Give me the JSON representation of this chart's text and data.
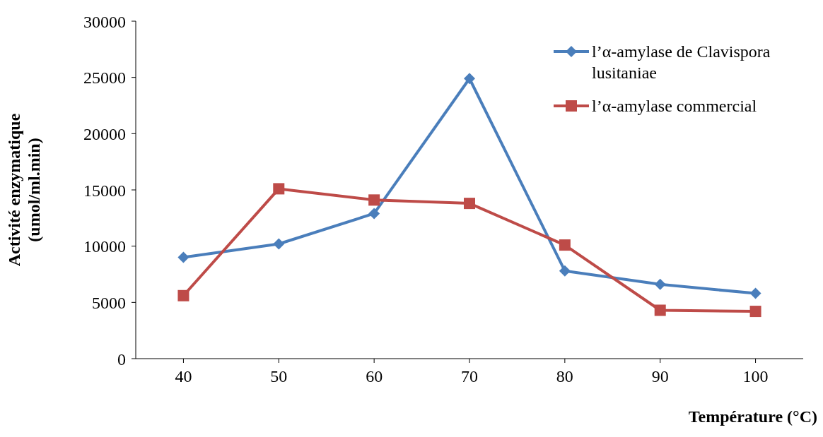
{
  "chart_data": {
    "type": "line",
    "xlabel": "Température (°C)",
    "ylabel": "Activité enzymatique (umol/ml.min)",
    "categories": [
      "40",
      "50",
      "60",
      "70",
      "80",
      "90",
      "100"
    ],
    "series": [
      {
        "name": "l’α-amylase  de Clavispora lusitaniae",
        "color": "#4a7ebb",
        "marker": "diamond",
        "values": [
          9000,
          10200,
          12900,
          24900,
          7800,
          6600,
          5800
        ]
      },
      {
        "name": "l’α-amylase commercial",
        "color": "#be4b48",
        "marker": "square",
        "values": [
          5600,
          15100,
          14100,
          13800,
          10100,
          4300,
          4200
        ]
      }
    ],
    "ylim": [
      0,
      30000
    ],
    "yticks": [
      0,
      5000,
      10000,
      15000,
      20000,
      25000,
      30000
    ],
    "grid": false,
    "legend": "top right"
  }
}
